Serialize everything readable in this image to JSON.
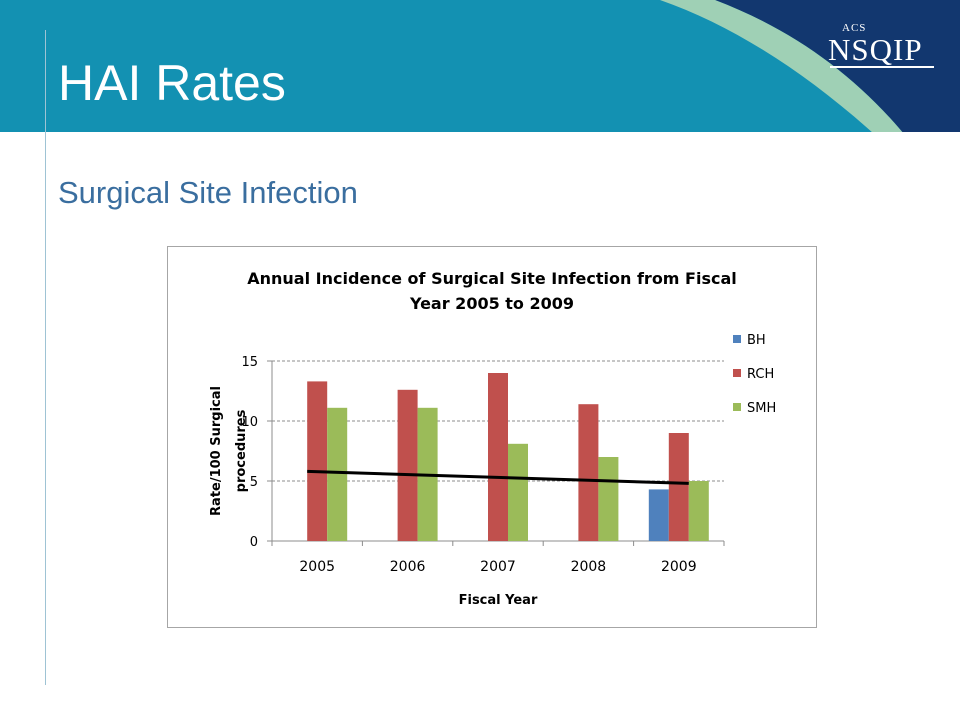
{
  "slide": {
    "title": "HAI Rates",
    "subtitle": "Surgical Site Infection",
    "logo_small": "ACS",
    "logo_main": "NSQIP"
  },
  "colors": {
    "banner_teal": "#1391b2",
    "banner_navy": "#12376f",
    "banner_mint": "#9fd0b5",
    "title_text": "#ffffff",
    "subtitle_text": "#3a6e9f"
  },
  "chart_data": {
    "type": "bar",
    "title": "Annual Incidence of Surgical Site Infection from Fiscal Year 2005 to 2009",
    "title_lines": [
      "Annual Incidence of Surgical Site Infection from Fiscal",
      "Year 2005 to 2009"
    ],
    "xlabel": "Fiscal Year",
    "ylabel": "Rate/100 Surgical procedures",
    "ylabel_lines": [
      "Rate/100 Surgical",
      "procedures"
    ],
    "categories": [
      "2005",
      "2006",
      "2007",
      "2008",
      "2009"
    ],
    "ylim": [
      0,
      15
    ],
    "yticks": [
      0,
      5,
      10,
      15
    ],
    "grid": true,
    "legend_position": "right",
    "series": [
      {
        "name": "BH",
        "color": "#4f81bd",
        "values": [
          null,
          null,
          null,
          null,
          4.3
        ]
      },
      {
        "name": "RCH",
        "color": "#c0504d",
        "values": [
          13.3,
          12.6,
          14.0,
          11.4,
          9.0
        ]
      },
      {
        "name": "SMH",
        "color": "#9bbb59",
        "values": [
          11.1,
          11.1,
          8.1,
          7.0,
          5.0
        ]
      }
    ],
    "trendline": {
      "color": "#000000",
      "x": [
        "2005",
        "2009"
      ],
      "y": [
        5.8,
        4.8
      ]
    }
  }
}
